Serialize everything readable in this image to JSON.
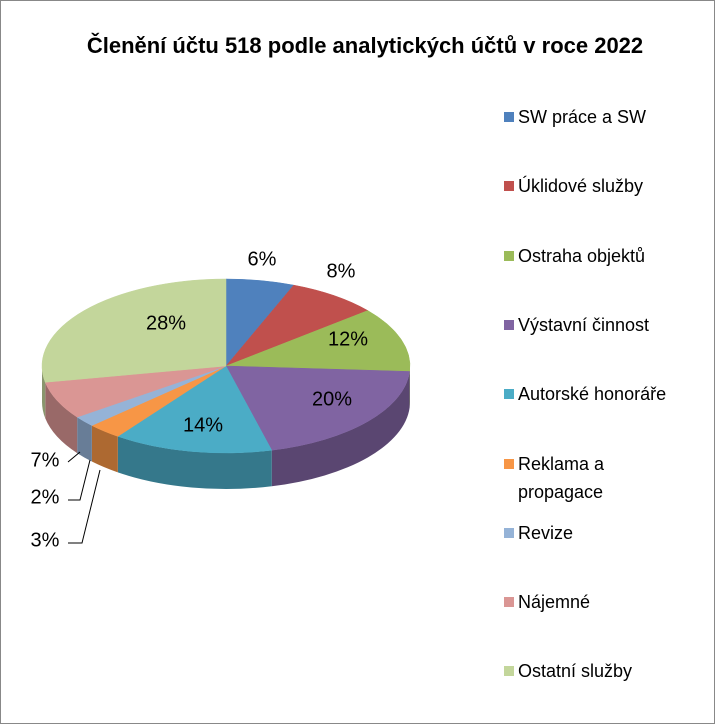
{
  "chart_data": {
    "type": "pie3d",
    "title": "Členění účtu 518 podle analytických účtů v roce 2022",
    "categories": [
      "SW práce a SW",
      "Úklidové služby",
      "Ostraha objektů",
      "Výstavní činnost",
      "Autorské honoráře",
      "Reklama a propagace",
      "Revize",
      "Nájemné",
      "Ostatní služby"
    ],
    "values": [
      6,
      8,
      12,
      20,
      14,
      3,
      2,
      7,
      28
    ],
    "value_labels": [
      "6%",
      "8%",
      "12%",
      "20%",
      "14%",
      "3%",
      "2%",
      "7%",
      "28%"
    ],
    "colors": [
      "#4f81bd",
      "#c0504d",
      "#9bbb59",
      "#8064a2",
      "#4bacc6",
      "#f79646",
      "#95b3d7",
      "#da9694",
      "#c3d69b"
    ],
    "legend": "right"
  }
}
